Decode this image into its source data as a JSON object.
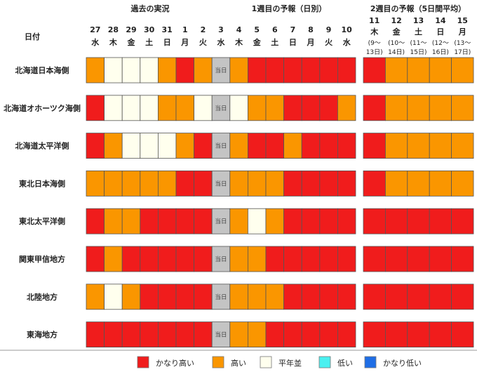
{
  "chart_data": {
    "type": "heatmap",
    "header": {
      "date_label": "日付",
      "section_past": "過去の実況",
      "section_week1": "1週目の予報（日別）",
      "section_week2": "2週目の予報（5日間平均）"
    },
    "days": [
      {
        "num": "27",
        "wd": "水"
      },
      {
        "num": "28",
        "wd": "木"
      },
      {
        "num": "29",
        "wd": "金"
      },
      {
        "num": "30",
        "wd": "土"
      },
      {
        "num": "31",
        "wd": "日"
      },
      {
        "num": "1",
        "wd": "月"
      },
      {
        "num": "2",
        "wd": "火"
      },
      {
        "num": "3",
        "wd": "水"
      },
      {
        "num": "4",
        "wd": "木"
      },
      {
        "num": "5",
        "wd": "金"
      },
      {
        "num": "6",
        "wd": "土"
      },
      {
        "num": "7",
        "wd": "日"
      },
      {
        "num": "8",
        "wd": "月"
      },
      {
        "num": "9",
        "wd": "火"
      },
      {
        "num": "10",
        "wd": "水"
      }
    ],
    "week2": [
      {
        "num": "11",
        "wd": "木",
        "range_a": "(9〜",
        "range_b": "13日)"
      },
      {
        "num": "12",
        "wd": "金",
        "range_a": "(10〜",
        "range_b": "14日)"
      },
      {
        "num": "13",
        "wd": "土",
        "range_a": "(11〜",
        "range_b": "15日)"
      },
      {
        "num": "14",
        "wd": "日",
        "range_a": "(12〜",
        "range_b": "16日)"
      },
      {
        "num": "15",
        "wd": "月",
        "range_a": "(13〜",
        "range_b": "17日)"
      }
    ],
    "today_label": "当日",
    "today_index": 7,
    "categories": {
      "VH": {
        "label": "かなり高い",
        "color": "#f01c1c"
      },
      "H": {
        "label": "高い",
        "color": "#fa9600"
      },
      "N": {
        "label": "平年並",
        "color": "#ffffee"
      },
      "L": {
        "label": "低い",
        "color": "#4af0f0"
      },
      "VL": {
        "label": "かなり低い",
        "color": "#1f6ee6"
      },
      "T": {
        "label": "",
        "color": "#c4c4c4"
      }
    },
    "legend_order": [
      "VH",
      "H",
      "N",
      "L",
      "VL"
    ],
    "regions": [
      {
        "name": "北海道日本海側",
        "daily": [
          "H",
          "N",
          "N",
          "N",
          "H",
          "VH",
          "H",
          "T",
          "H",
          "VH",
          "VH",
          "VH",
          "VH",
          "VH",
          "VH"
        ],
        "week2": [
          "VH",
          "H",
          "H",
          "H",
          "H"
        ]
      },
      {
        "name": "北海道オホーツク海側",
        "daily": [
          "VH",
          "N",
          "N",
          "N",
          "H",
          "H",
          "N",
          "T",
          "N",
          "H",
          "H",
          "VH",
          "VH",
          "VH",
          "H"
        ],
        "week2": [
          "VH",
          "H",
          "H",
          "H",
          "H"
        ]
      },
      {
        "name": "北海道太平洋側",
        "daily": [
          "VH",
          "H",
          "N",
          "N",
          "N",
          "H",
          "VH",
          "T",
          "H",
          "VH",
          "VH",
          "H",
          "VH",
          "VH",
          "VH"
        ],
        "week2": [
          "VH",
          "H",
          "H",
          "H",
          "H"
        ]
      },
      {
        "name": "東北日本海側",
        "daily": [
          "H",
          "H",
          "H",
          "H",
          "H",
          "VH",
          "VH",
          "T",
          "H",
          "H",
          "H",
          "VH",
          "VH",
          "VH",
          "VH"
        ],
        "week2": [
          "VH",
          "H",
          "H",
          "H",
          "H"
        ]
      },
      {
        "name": "東北太平洋側",
        "daily": [
          "VH",
          "H",
          "H",
          "VH",
          "VH",
          "VH",
          "VH",
          "T",
          "H",
          "N",
          "H",
          "VH",
          "VH",
          "VH",
          "VH"
        ],
        "week2": [
          "VH",
          "VH",
          "VH",
          "VH",
          "VH"
        ]
      },
      {
        "name": "関東甲信地方",
        "daily": [
          "VH",
          "H",
          "VH",
          "VH",
          "VH",
          "VH",
          "VH",
          "T",
          "H",
          "H",
          "VH",
          "VH",
          "VH",
          "VH",
          "VH"
        ],
        "week2": [
          "VH",
          "VH",
          "VH",
          "VH",
          "VH"
        ]
      },
      {
        "name": "北陸地方",
        "daily": [
          "H",
          "N",
          "H",
          "VH",
          "VH",
          "VH",
          "VH",
          "T",
          "H",
          "H",
          "H",
          "VH",
          "VH",
          "VH",
          "VH"
        ],
        "week2": [
          "VH",
          "VH",
          "VH",
          "VH",
          "VH"
        ]
      },
      {
        "name": "東海地方",
        "daily": [
          "VH",
          "VH",
          "VH",
          "VH",
          "VH",
          "VH",
          "VH",
          "T",
          "H",
          "H",
          "VH",
          "VH",
          "VH",
          "VH",
          "VH"
        ],
        "week2": [
          "VH",
          "VH",
          "VH",
          "VH",
          "VH"
        ]
      }
    ]
  }
}
